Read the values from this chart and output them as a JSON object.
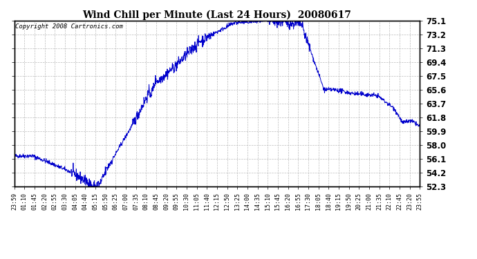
{
  "title": "Wind Chill per Minute (Last 24 Hours)  20080617",
  "copyright": "Copyright 2008 Cartronics.com",
  "line_color": "#0000CC",
  "background_color": "#ffffff",
  "grid_color": "#bbbbbb",
  "ylim": [
    52.3,
    75.1
  ],
  "yticks": [
    52.3,
    54.2,
    56.1,
    58.0,
    59.9,
    61.8,
    63.7,
    65.6,
    67.5,
    69.4,
    71.3,
    73.2,
    75.1
  ],
  "xtick_labels": [
    "23:59",
    "01:10",
    "01:45",
    "02:20",
    "02:55",
    "03:30",
    "04:05",
    "04:40",
    "05:15",
    "05:50",
    "06:25",
    "07:00",
    "07:35",
    "08:10",
    "08:45",
    "09:20",
    "09:55",
    "10:30",
    "11:05",
    "11:40",
    "12:15",
    "12:50",
    "13:25",
    "14:00",
    "14:35",
    "15:10",
    "15:45",
    "16:20",
    "16:55",
    "17:30",
    "18:05",
    "18:40",
    "19:15",
    "19:50",
    "20:25",
    "21:00",
    "21:35",
    "22:10",
    "22:45",
    "23:20",
    "23:55"
  ],
  "figsize": [
    6.9,
    3.75
  ],
  "dpi": 100
}
